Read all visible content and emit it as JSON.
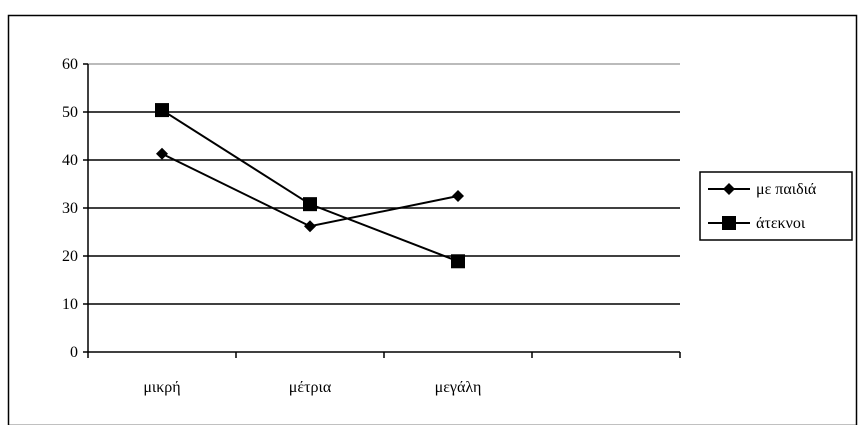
{
  "chart_data": {
    "type": "line",
    "title": "",
    "xlabel": "",
    "ylabel": "",
    "categories": [
      "μικρή",
      "μέτρια",
      "μεγάλη",
      ""
    ],
    "ylim": [
      0,
      60
    ],
    "yticks": [
      0,
      10,
      20,
      30,
      40,
      50,
      60
    ],
    "grid": true,
    "legend_position": "right",
    "series": [
      {
        "name": "με παιδιά",
        "marker": "diamond",
        "color": "#000000",
        "values": [
          41.3,
          26.2,
          32.5,
          null
        ]
      },
      {
        "name": "άτεκνοι",
        "marker": "square",
        "color": "#000000",
        "values": [
          50.4,
          30.8,
          18.9,
          null
        ]
      }
    ]
  }
}
